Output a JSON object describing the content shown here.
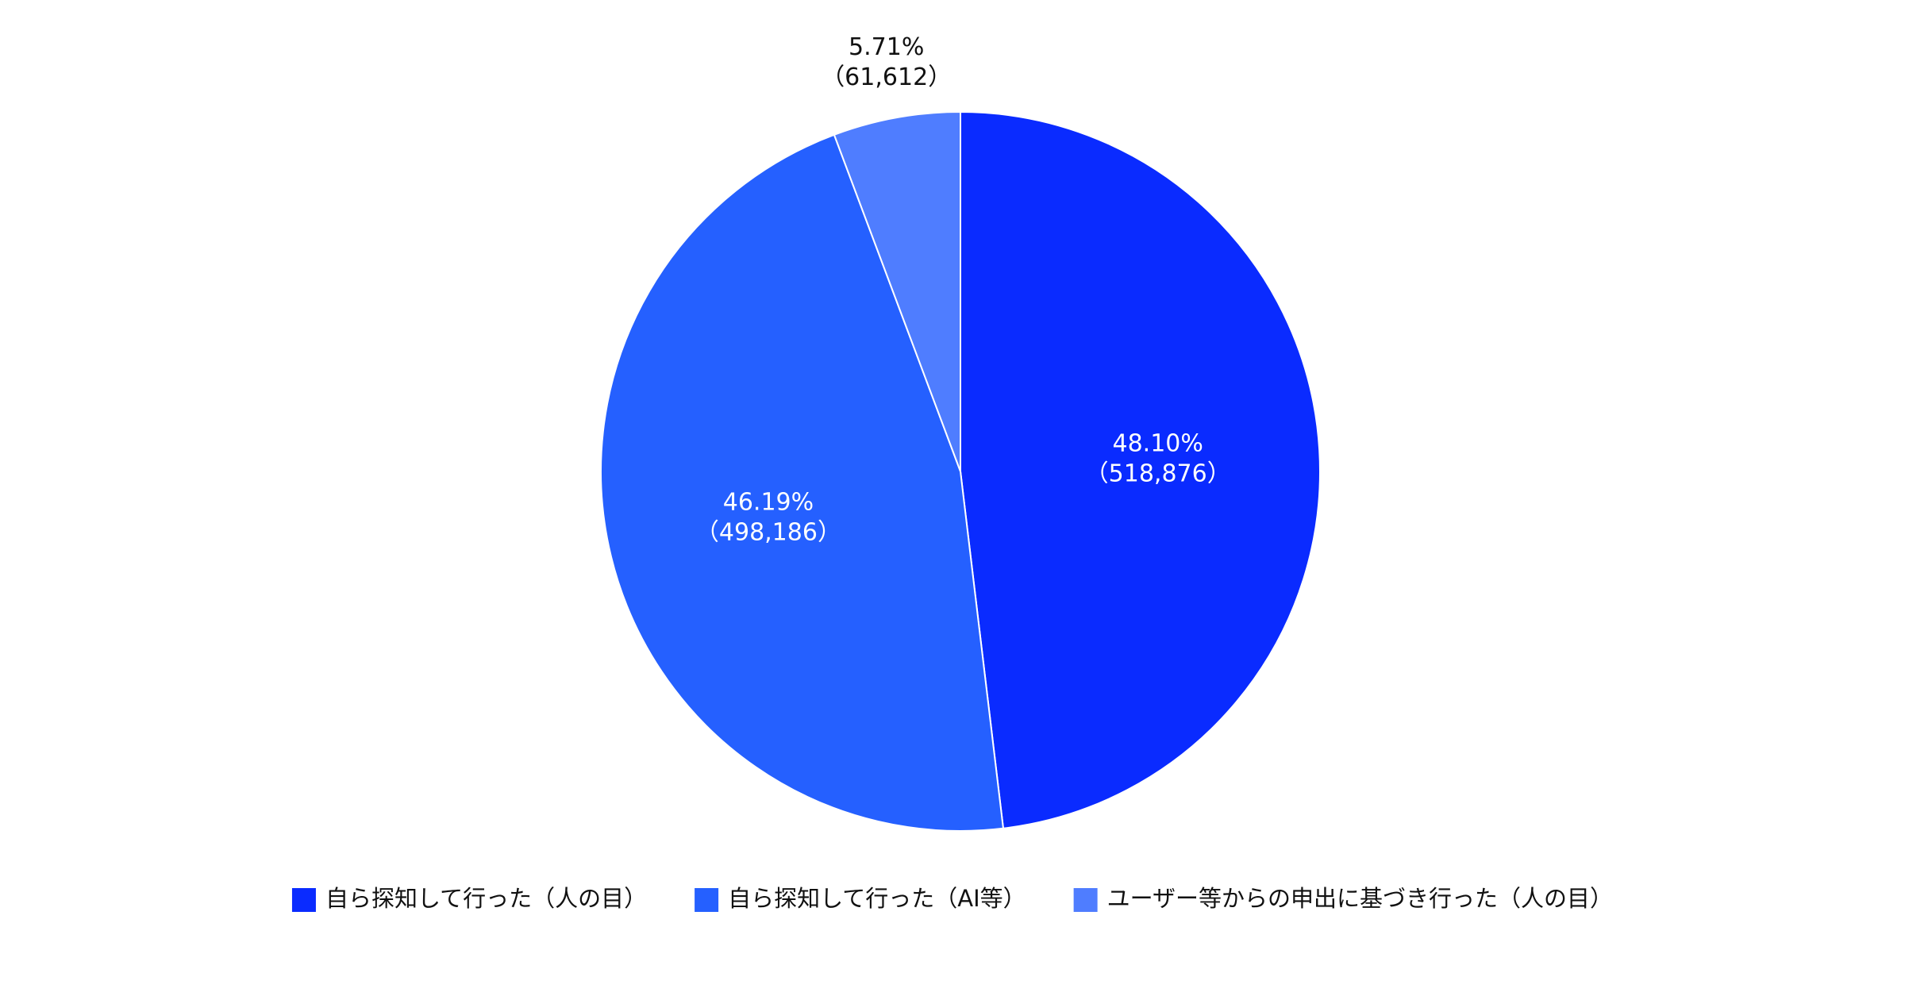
{
  "chart_data": {
    "type": "pie",
    "categories": [
      "自ら探知して行った（人の目）",
      "自ら探知して行った（AI等）",
      "ユーザー等からの申出に基づき行った（人の目）"
    ],
    "values": [
      48.1,
      46.19,
      5.71
    ],
    "value_labels": [
      "48.10%",
      "46.19%",
      "5.71%"
    ],
    "counts": [
      518876,
      498186,
      61612
    ],
    "count_labels": [
      "（518,876）",
      "（498,186）",
      "（61,612）"
    ],
    "colors": [
      "#0a2bff",
      "#2560ff",
      "#4f7dff"
    ],
    "legend": "bottom"
  }
}
